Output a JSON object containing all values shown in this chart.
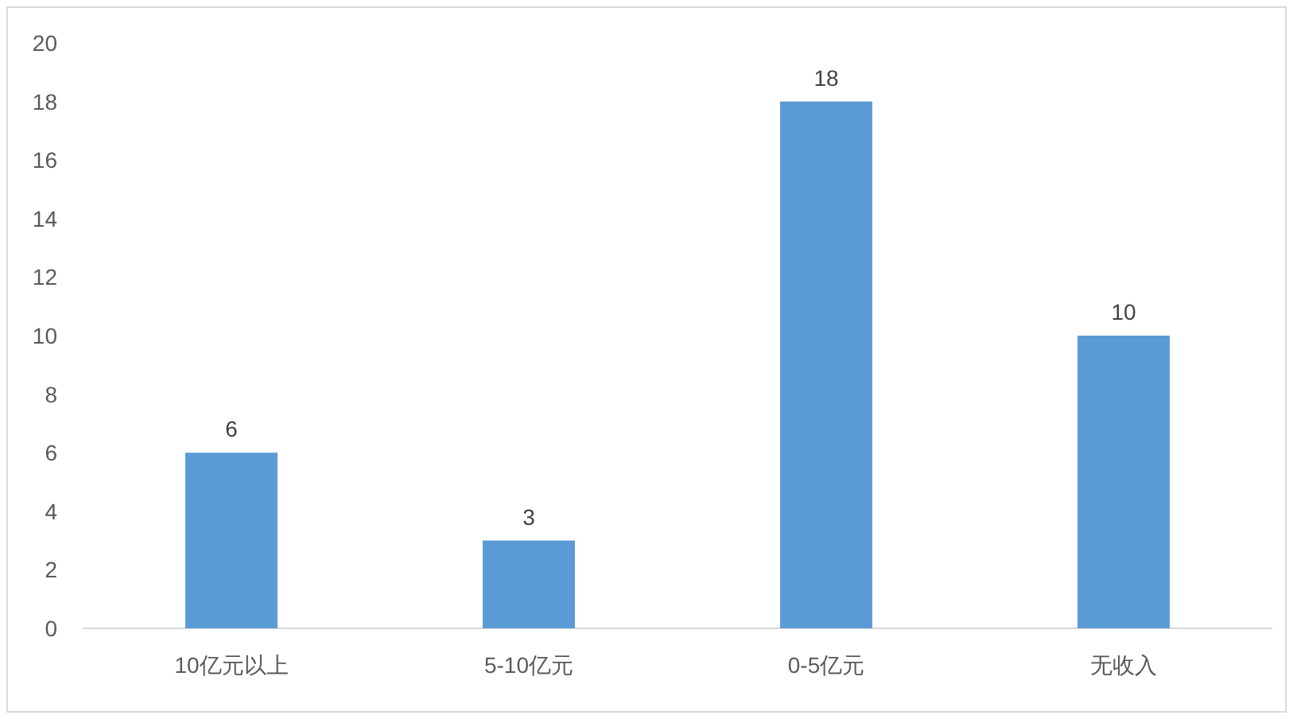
{
  "chart_data": {
    "type": "bar",
    "categories": [
      "10亿元以上",
      "5-10亿元",
      "0-5亿元",
      "无收入"
    ],
    "values": [
      6,
      3,
      18,
      10
    ],
    "color": "#5b9bd5",
    "ylim": [
      0,
      20
    ],
    "yticks": [
      0,
      2,
      4,
      6,
      8,
      10,
      12,
      14,
      16,
      18,
      20
    ],
    "grid": false,
    "data_labels": true
  }
}
